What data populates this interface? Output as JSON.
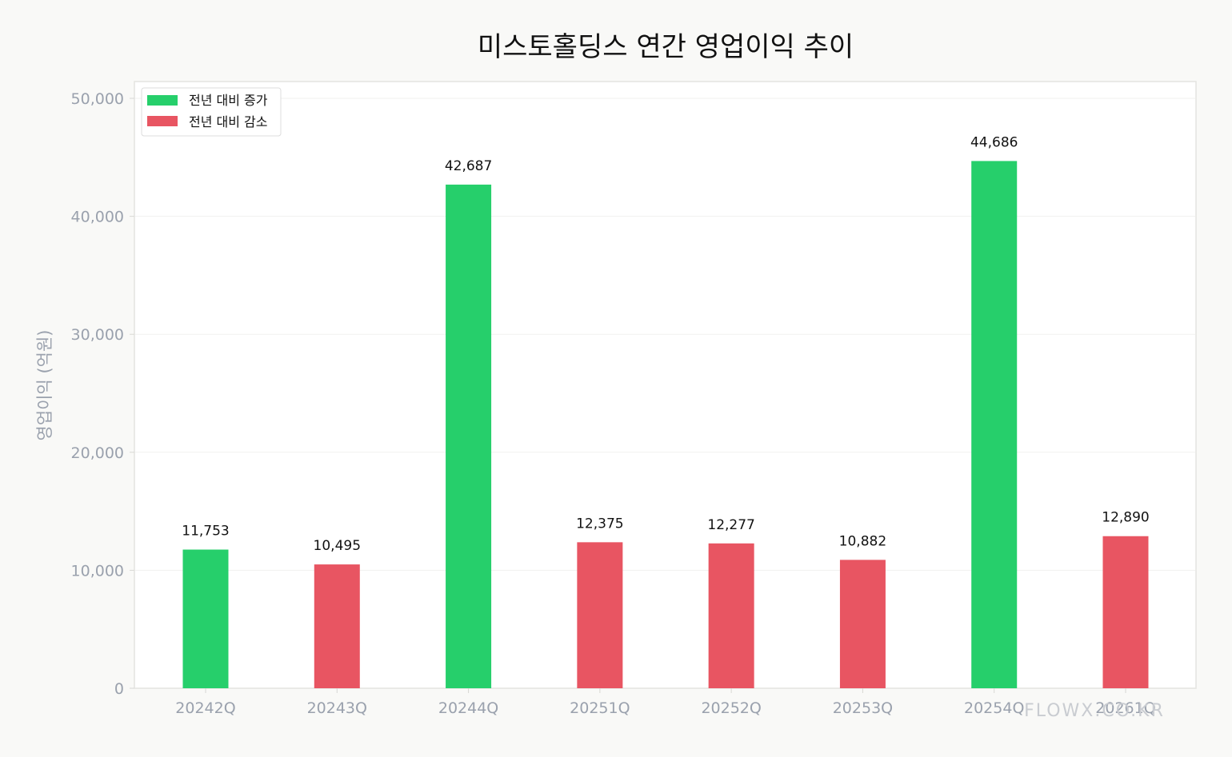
{
  "chart_data": {
    "type": "bar",
    "title": "미스토홀딩스 연간 영업이익 추이",
    "ylabel": "영업이익 (억원)",
    "xlabel": "",
    "ylim": [
      0,
      50000
    ],
    "yticks": [
      0,
      10000,
      20000,
      30000,
      40000,
      50000
    ],
    "ytick_labels": [
      "0",
      "10,000",
      "20,000",
      "30,000",
      "40,000",
      "50,000"
    ],
    "categories": [
      "20242Q",
      "20243Q",
      "20244Q",
      "20251Q",
      "20252Q",
      "20253Q",
      "20254Q",
      "20261Q"
    ],
    "values": [
      11753,
      10495,
      42687,
      12375,
      12277,
      10882,
      44686,
      12890
    ],
    "value_labels": [
      "11,753",
      "10,495",
      "42,687",
      "12,375",
      "12,277",
      "10,882",
      "44,686",
      "12,890"
    ],
    "status": [
      "increase",
      "decrease",
      "increase",
      "decrease",
      "decrease",
      "decrease",
      "increase",
      "decrease"
    ],
    "legend": {
      "position": "top-left",
      "entries": [
        {
          "label": "전년 대비 증가",
          "color": "#26cf6b"
        },
        {
          "label": "전년 대비 감소",
          "color": "#e85562"
        }
      ]
    },
    "colors": {
      "increase": "#26cf6b",
      "decrease": "#e85562"
    },
    "grid": true
  },
  "watermark": "FLOWX.CO.KR"
}
